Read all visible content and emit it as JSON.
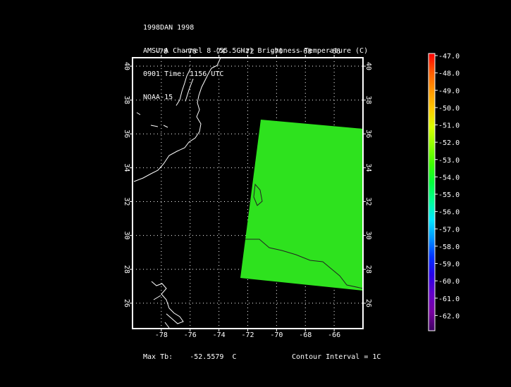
{
  "header": {
    "line1": "1998DAN 1998",
    "line2": "AMSU-A Channel 8 (55.5GHz) Brightness Temperature (C)",
    "line3": "0901 Time: 1156 UTC",
    "line4": "NOAA-15"
  },
  "map": {
    "lon_ticks": [
      "-78",
      "-76",
      "-74",
      "-72",
      "-70",
      "-68",
      "-66"
    ],
    "lat_ticks": [
      "40",
      "38",
      "36",
      "34",
      "32",
      "30",
      "28",
      "26"
    ],
    "lon_range": [
      -80,
      -64
    ],
    "lat_range": [
      24.5,
      40.5
    ],
    "grid": true,
    "swath_color": "#2ee21e",
    "coast_color": "#ffffff"
  },
  "colorbar": {
    "labels": [
      "-47.0",
      "-48.0",
      "-49.0",
      "-50.0",
      "-51.0",
      "-52.0",
      "-53.0",
      "-54.0",
      "-55.0",
      "-56.0",
      "-57.0",
      "-58.0",
      "-59.0",
      "-60.0",
      "-61.0",
      "-62.0"
    ],
    "colors": [
      "#ff0000",
      "#ff5a00",
      "#ff9600",
      "#ffc800",
      "#d8ff00",
      "#8cff00",
      "#3cff00",
      "#00ff3c",
      "#00ff96",
      "#00e6ff",
      "#0096ff",
      "#0032ff",
      "#2800e6",
      "#6400c8",
      "#7800a0",
      "#3c0060"
    ]
  },
  "footer": {
    "max_label": "Max Tb:",
    "max_value": "-52.5579",
    "max_unit": "C",
    "contour": "Contour Interval = 1C"
  }
}
